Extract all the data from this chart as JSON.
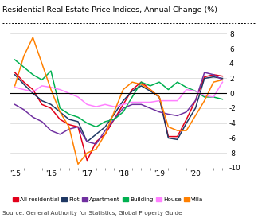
{
  "title": "Residential Real Estate Price Indices, Annual Change (%)",
  "source": "Source: General Authority for Statistics, Global Property Guide",
  "ylim": [
    -10,
    9
  ],
  "yticks": [
    -10,
    -8,
    -6,
    -4,
    -2,
    0,
    2,
    4,
    6,
    8
  ],
  "background_color": "#ffffff",
  "series": {
    "All residential": {
      "color": "#e2001a",
      "data": [
        2.8,
        1.5,
        0.5,
        -1.5,
        -2.0,
        -3.5,
        -4.2,
        -4.5,
        -9.0,
        -6.5,
        -5.5,
        -3.5,
        -1.5,
        0.5,
        1.5,
        0.5,
        -0.5,
        -5.8,
        -5.8,
        -3.5,
        -1.0,
        2.2,
        2.5,
        2.3
      ]
    },
    "Plot": {
      "color": "#1f3864",
      "data": [
        2.5,
        1.2,
        0.0,
        -1.0,
        -1.5,
        -2.5,
        -3.5,
        -3.8,
        -6.5,
        -5.5,
        -4.5,
        -2.8,
        -1.0,
        0.3,
        1.0,
        0.3,
        -0.5,
        -6.0,
        -6.2,
        -4.0,
        -2.0,
        2.0,
        2.2,
        2.0
      ]
    },
    "Apartment": {
      "color": "#7030a0",
      "data": [
        -1.5,
        -2.2,
        -3.2,
        -3.8,
        -5.0,
        -5.5,
        -4.8,
        -4.5,
        -6.5,
        -6.8,
        -5.0,
        -3.5,
        -2.0,
        -1.5,
        -1.5,
        -2.0,
        -2.5,
        -2.8,
        -3.0,
        -2.5,
        -1.0,
        2.8,
        2.5,
        1.8
      ]
    },
    "Building": {
      "color": "#00b050",
      "data": [
        4.5,
        3.5,
        2.5,
        1.8,
        3.0,
        -2.0,
        -2.8,
        -3.2,
        -4.0,
        -4.5,
        -3.8,
        -3.5,
        -2.5,
        -0.5,
        1.5,
        1.0,
        1.5,
        0.5,
        1.5,
        0.8,
        0.3,
        -0.5,
        -0.5,
        -0.8
      ]
    },
    "House": {
      "color": "#ff80ff",
      "data": [
        0.8,
        0.5,
        0.2,
        1.0,
        0.8,
        0.5,
        0.0,
        -0.5,
        -1.5,
        -1.8,
        -1.5,
        -1.8,
        -1.5,
        -1.2,
        -1.2,
        -1.2,
        -1.0,
        -1.0,
        -1.0,
        0.5,
        0.3,
        -0.3,
        -0.5,
        1.5
      ]
    },
    "Villa": {
      "color": "#ff8000",
      "data": [
        1.0,
        5.0,
        7.5,
        4.0,
        0.5,
        -2.5,
        -4.5,
        -9.5,
        -8.0,
        -7.5,
        -5.5,
        -2.5,
        0.5,
        1.5,
        1.2,
        0.5,
        -0.5,
        -4.5,
        -5.0,
        -5.0,
        -3.0,
        -1.0,
        1.5,
        1.8
      ]
    }
  },
  "legend_order": [
    "All residential",
    "Plot",
    "Apartment",
    "Building",
    "House",
    "Villa"
  ],
  "xtick_labels": [
    "'15",
    "'16",
    "'17",
    "'18",
    "'19",
    "'20"
  ],
  "xtick_positions": [
    0,
    4,
    8,
    12,
    16,
    20
  ]
}
